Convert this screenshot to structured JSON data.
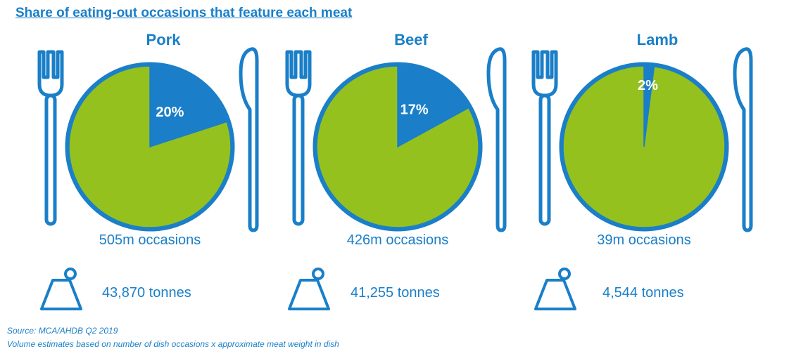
{
  "title": "Share of eating-out occasions that feature each meat",
  "colors": {
    "accent": "#1a7fc8",
    "pie_main": "#95c11f",
    "pie_share": "#1a7fc8"
  },
  "icons": {
    "cutlery_left": "fork-icon",
    "cutlery_right": "knife-icon",
    "weight": "weight-icon"
  },
  "chart_data": [
    {
      "type": "pie",
      "title": "Pork",
      "categories": [
        "Pork",
        "Other"
      ],
      "values": [
        20,
        80
      ],
      "label": "20%",
      "occasions": "505m occasions",
      "tonnes": "43,870 tonnes"
    },
    {
      "type": "pie",
      "title": "Beef",
      "categories": [
        "Beef",
        "Other"
      ],
      "values": [
        17,
        83
      ],
      "label": "17%",
      "occasions": "426m occasions",
      "tonnes": "41,255 tonnes"
    },
    {
      "type": "pie",
      "title": "Lamb",
      "categories": [
        "Lamb",
        "Other"
      ],
      "values": [
        2,
        98
      ],
      "label": "2%",
      "occasions": "39m occasions",
      "tonnes": "4,544 tonnes"
    }
  ],
  "footer": {
    "source": "Source: MCA/AHDB Q2 2019",
    "note": "Volume estimates based on number of dish occasions x approximate meat weight in dish"
  }
}
